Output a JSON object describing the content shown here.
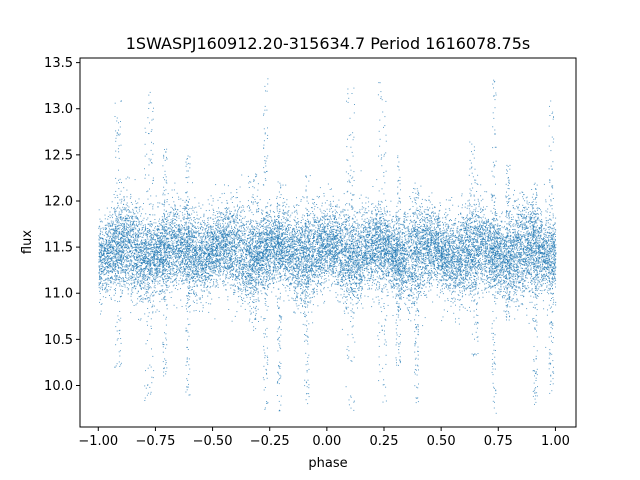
{
  "chart_data": {
    "type": "scatter",
    "title": "1SWASPJ160912.20-315634.7 Period 1616078.75s",
    "xlabel": "phase",
    "ylabel": "flux",
    "xlim": [
      -1.08,
      1.09
    ],
    "ylim": [
      9.55,
      13.55
    ],
    "xticks": [
      -1.0,
      -0.75,
      -0.5,
      -0.25,
      0.0,
      0.25,
      0.5,
      0.75,
      1.0
    ],
    "xtick_labels": [
      "−1.00",
      "−0.75",
      "−0.50",
      "−0.25",
      "0.00",
      "0.25",
      "0.50",
      "0.75",
      "1.00"
    ],
    "yticks": [
      10.0,
      10.5,
      11.0,
      11.5,
      12.0,
      12.5,
      13.0,
      13.5
    ],
    "ytick_labels": [
      "10.0",
      "10.5",
      "11.0",
      "11.5",
      "12.0",
      "12.5",
      "13.0",
      "13.5"
    ],
    "grid": false,
    "legend": "none",
    "point_color": "#1f77b4",
    "x_range": [
      -1.0,
      1.0
    ],
    "points_per_unit_phase": 9000,
    "symmetric_about_zero": true,
    "flux_median": 11.45,
    "flux_scatter_sigma": 0.2,
    "flux_extent": [
      9.7,
      13.35
    ],
    "spread_segments": [
      {
        "x": [
          -0.93,
          -0.9
        ],
        "y": [
          10.2,
          13.1
        ]
      },
      {
        "x": [
          -0.8,
          -0.76
        ],
        "y": [
          9.7,
          13.25
        ]
      },
      {
        "x": [
          -0.72,
          -0.7
        ],
        "y": [
          10.1,
          12.6
        ]
      },
      {
        "x": [
          -0.62,
          -0.6
        ],
        "y": [
          9.9,
          12.5
        ]
      },
      {
        "x": [
          -0.35,
          -0.3
        ],
        "y": [
          10.6,
          12.3
        ]
      },
      {
        "x": [
          -0.28,
          -0.26
        ],
        "y": [
          9.7,
          13.35
        ]
      },
      {
        "x": [
          -0.22,
          -0.2
        ],
        "y": [
          9.7,
          12.2
        ]
      },
      {
        "x": [
          -0.1,
          -0.08
        ],
        "y": [
          9.8,
          12.3
        ]
      },
      {
        "x": [
          0.08,
          0.12
        ],
        "y": [
          9.7,
          13.25
        ]
      },
      {
        "x": [
          0.22,
          0.26
        ],
        "y": [
          9.8,
          13.3
        ]
      },
      {
        "x": [
          0.3,
          0.32
        ],
        "y": [
          10.2,
          12.5
        ]
      },
      {
        "x": [
          0.38,
          0.4
        ],
        "y": [
          9.8,
          12.1
        ]
      },
      {
        "x": [
          0.62,
          0.66
        ],
        "y": [
          10.3,
          12.7
        ]
      },
      {
        "x": [
          0.72,
          0.74
        ],
        "y": [
          9.7,
          13.35
        ]
      },
      {
        "x": [
          0.78,
          0.8
        ],
        "y": [
          10.7,
          12.4
        ]
      },
      {
        "x": [
          0.9,
          0.92
        ],
        "y": [
          9.8,
          12.2
        ]
      },
      {
        "x": [
          0.97,
          0.99
        ],
        "y": [
          9.9,
          13.1
        ]
      }
    ]
  }
}
